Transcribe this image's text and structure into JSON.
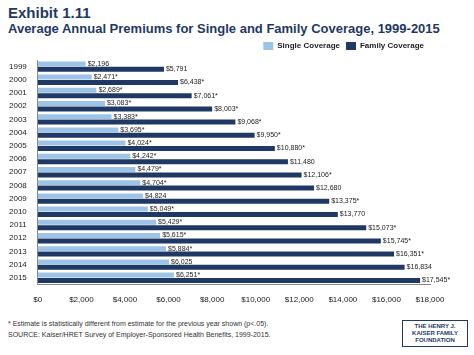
{
  "chart_data": {
    "type": "bar",
    "orientation": "horizontal",
    "title": "Exhibit 1.11",
    "subtitle": "Average Annual Premiums for Single and Family Coverage, 1999-2015",
    "categories": [
      "1999",
      "2000",
      "2001",
      "2002",
      "2003",
      "2004",
      "2005",
      "2006",
      "2007",
      "2008",
      "2009",
      "2010",
      "2011",
      "2012",
      "2013",
      "2014",
      "2015"
    ],
    "series": [
      {
        "name": "Single Coverage",
        "color": "#9dc3e6",
        "values": [
          2196,
          2471,
          2689,
          3083,
          3383,
          3695,
          4024,
          4242,
          4479,
          4704,
          4824,
          5049,
          5429,
          5615,
          5884,
          6025,
          6251
        ],
        "value_labels": [
          "$2,196",
          "$2,471*",
          "$2,689*",
          "$3,083*",
          "$3,383*",
          "$3,695*",
          "$4,024*",
          "$4,242*",
          "$4,479*",
          "$4,704*",
          "$4,824",
          "$5,049*",
          "$5,429*",
          "$5,615*",
          "$5,884*",
          "$6,025",
          "$6,251*"
        ]
      },
      {
        "name": "Family Coverage",
        "color": "#1f3864",
        "values": [
          5791,
          6438,
          7061,
          8003,
          9068,
          9950,
          10880,
          11480,
          12106,
          12680,
          13375,
          13770,
          15073,
          15745,
          16351,
          16834,
          17545
        ],
        "value_labels": [
          "$5,791",
          "$6,438*",
          "$7,061*",
          "$8,003*",
          "$9,068*",
          "$9,950*",
          "$10,880*",
          "$11,480",
          "$12,106*",
          "$12,680",
          "$13,375*",
          "$13,770",
          "$15,073*",
          "$15,745*",
          "$16,351*",
          "$16,834",
          "$17,545*"
        ]
      }
    ],
    "xlim": [
      0,
      18000
    ],
    "xticks": [
      {
        "value": 0,
        "label": "$0"
      },
      {
        "value": 2000,
        "label": "$2,000"
      },
      {
        "value": 4000,
        "label": "$4,000"
      },
      {
        "value": 6000,
        "label": "$6,000"
      },
      {
        "value": 8000,
        "label": "$8,000"
      },
      {
        "value": 10000,
        "label": "$10,000"
      },
      {
        "value": 12000,
        "label": "$12,000"
      },
      {
        "value": 14000,
        "label": "$14,000"
      },
      {
        "value": 16000,
        "label": "$16,000"
      },
      {
        "value": 18000,
        "label": "$18,000"
      }
    ],
    "grid": false,
    "legend": "upper right",
    "data_labels": true
  },
  "notes": {
    "footnote": "* Estimate is statistically different from estimate for the previous year shown (p<.05).",
    "source": "SOURCE: Kaiser/HRET Survey of Employer-Sponsored Health Benefits, 1999-2015.",
    "logo": "THE HENRY J. KAISER FAMILY FOUNDATION"
  }
}
